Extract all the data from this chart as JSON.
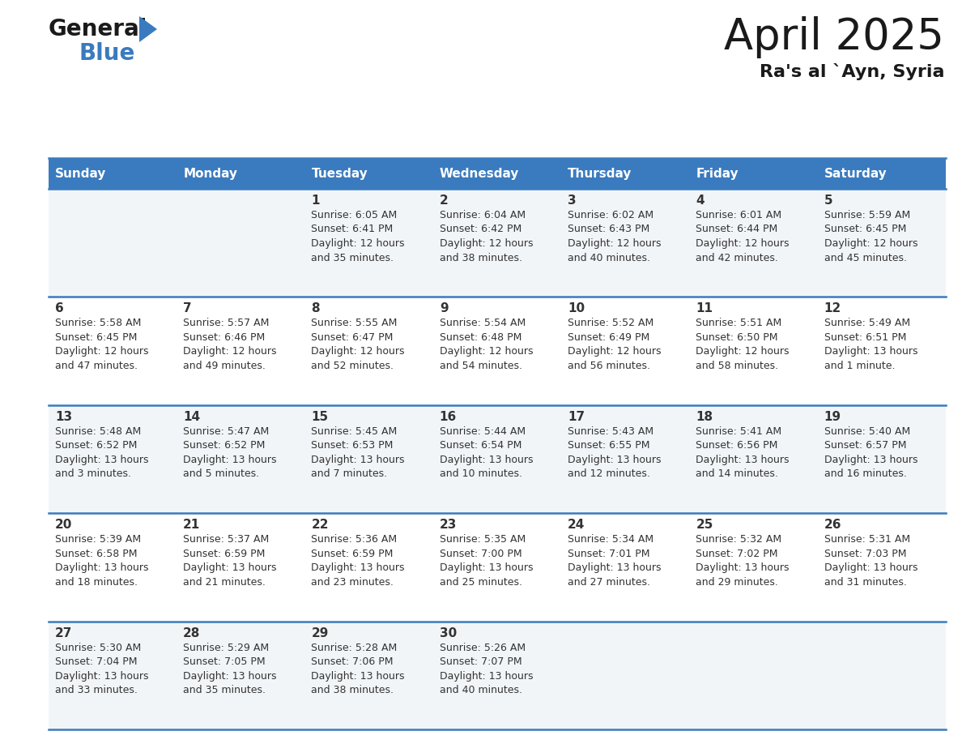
{
  "title": "April 2025",
  "subtitle": "Ra's al `Ayn, Syria",
  "header_color": "#3a7bbf",
  "header_text_color": "#ffffff",
  "cell_bg_even": "#f2f5f8",
  "cell_bg_odd": "#ffffff",
  "border_color": "#3a7bbf",
  "text_color": "#333333",
  "days_of_week": [
    "Sunday",
    "Monday",
    "Tuesday",
    "Wednesday",
    "Thursday",
    "Friday",
    "Saturday"
  ],
  "weeks": [
    [
      {
        "day": "",
        "lines": []
      },
      {
        "day": "",
        "lines": []
      },
      {
        "day": "1",
        "lines": [
          "Sunrise: 6:05 AM",
          "Sunset: 6:41 PM",
          "Daylight: 12 hours",
          "and 35 minutes."
        ]
      },
      {
        "day": "2",
        "lines": [
          "Sunrise: 6:04 AM",
          "Sunset: 6:42 PM",
          "Daylight: 12 hours",
          "and 38 minutes."
        ]
      },
      {
        "day": "3",
        "lines": [
          "Sunrise: 6:02 AM",
          "Sunset: 6:43 PM",
          "Daylight: 12 hours",
          "and 40 minutes."
        ]
      },
      {
        "day": "4",
        "lines": [
          "Sunrise: 6:01 AM",
          "Sunset: 6:44 PM",
          "Daylight: 12 hours",
          "and 42 minutes."
        ]
      },
      {
        "day": "5",
        "lines": [
          "Sunrise: 5:59 AM",
          "Sunset: 6:45 PM",
          "Daylight: 12 hours",
          "and 45 minutes."
        ]
      }
    ],
    [
      {
        "day": "6",
        "lines": [
          "Sunrise: 5:58 AM",
          "Sunset: 6:45 PM",
          "Daylight: 12 hours",
          "and 47 minutes."
        ]
      },
      {
        "day": "7",
        "lines": [
          "Sunrise: 5:57 AM",
          "Sunset: 6:46 PM",
          "Daylight: 12 hours",
          "and 49 minutes."
        ]
      },
      {
        "day": "8",
        "lines": [
          "Sunrise: 5:55 AM",
          "Sunset: 6:47 PM",
          "Daylight: 12 hours",
          "and 52 minutes."
        ]
      },
      {
        "day": "9",
        "lines": [
          "Sunrise: 5:54 AM",
          "Sunset: 6:48 PM",
          "Daylight: 12 hours",
          "and 54 minutes."
        ]
      },
      {
        "day": "10",
        "lines": [
          "Sunrise: 5:52 AM",
          "Sunset: 6:49 PM",
          "Daylight: 12 hours",
          "and 56 minutes."
        ]
      },
      {
        "day": "11",
        "lines": [
          "Sunrise: 5:51 AM",
          "Sunset: 6:50 PM",
          "Daylight: 12 hours",
          "and 58 minutes."
        ]
      },
      {
        "day": "12",
        "lines": [
          "Sunrise: 5:49 AM",
          "Sunset: 6:51 PM",
          "Daylight: 13 hours",
          "and 1 minute."
        ]
      }
    ],
    [
      {
        "day": "13",
        "lines": [
          "Sunrise: 5:48 AM",
          "Sunset: 6:52 PM",
          "Daylight: 13 hours",
          "and 3 minutes."
        ]
      },
      {
        "day": "14",
        "lines": [
          "Sunrise: 5:47 AM",
          "Sunset: 6:52 PM",
          "Daylight: 13 hours",
          "and 5 minutes."
        ]
      },
      {
        "day": "15",
        "lines": [
          "Sunrise: 5:45 AM",
          "Sunset: 6:53 PM",
          "Daylight: 13 hours",
          "and 7 minutes."
        ]
      },
      {
        "day": "16",
        "lines": [
          "Sunrise: 5:44 AM",
          "Sunset: 6:54 PM",
          "Daylight: 13 hours",
          "and 10 minutes."
        ]
      },
      {
        "day": "17",
        "lines": [
          "Sunrise: 5:43 AM",
          "Sunset: 6:55 PM",
          "Daylight: 13 hours",
          "and 12 minutes."
        ]
      },
      {
        "day": "18",
        "lines": [
          "Sunrise: 5:41 AM",
          "Sunset: 6:56 PM",
          "Daylight: 13 hours",
          "and 14 minutes."
        ]
      },
      {
        "day": "19",
        "lines": [
          "Sunrise: 5:40 AM",
          "Sunset: 6:57 PM",
          "Daylight: 13 hours",
          "and 16 minutes."
        ]
      }
    ],
    [
      {
        "day": "20",
        "lines": [
          "Sunrise: 5:39 AM",
          "Sunset: 6:58 PM",
          "Daylight: 13 hours",
          "and 18 minutes."
        ]
      },
      {
        "day": "21",
        "lines": [
          "Sunrise: 5:37 AM",
          "Sunset: 6:59 PM",
          "Daylight: 13 hours",
          "and 21 minutes."
        ]
      },
      {
        "day": "22",
        "lines": [
          "Sunrise: 5:36 AM",
          "Sunset: 6:59 PM",
          "Daylight: 13 hours",
          "and 23 minutes."
        ]
      },
      {
        "day": "23",
        "lines": [
          "Sunrise: 5:35 AM",
          "Sunset: 7:00 PM",
          "Daylight: 13 hours",
          "and 25 minutes."
        ]
      },
      {
        "day": "24",
        "lines": [
          "Sunrise: 5:34 AM",
          "Sunset: 7:01 PM",
          "Daylight: 13 hours",
          "and 27 minutes."
        ]
      },
      {
        "day": "25",
        "lines": [
          "Sunrise: 5:32 AM",
          "Sunset: 7:02 PM",
          "Daylight: 13 hours",
          "and 29 minutes."
        ]
      },
      {
        "day": "26",
        "lines": [
          "Sunrise: 5:31 AM",
          "Sunset: 7:03 PM",
          "Daylight: 13 hours",
          "and 31 minutes."
        ]
      }
    ],
    [
      {
        "day": "27",
        "lines": [
          "Sunrise: 5:30 AM",
          "Sunset: 7:04 PM",
          "Daylight: 13 hours",
          "and 33 minutes."
        ]
      },
      {
        "day": "28",
        "lines": [
          "Sunrise: 5:29 AM",
          "Sunset: 7:05 PM",
          "Daylight: 13 hours",
          "and 35 minutes."
        ]
      },
      {
        "day": "29",
        "lines": [
          "Sunrise: 5:28 AM",
          "Sunset: 7:06 PM",
          "Daylight: 13 hours",
          "and 38 minutes."
        ]
      },
      {
        "day": "30",
        "lines": [
          "Sunrise: 5:26 AM",
          "Sunset: 7:07 PM",
          "Daylight: 13 hours",
          "and 40 minutes."
        ]
      },
      {
        "day": "",
        "lines": []
      },
      {
        "day": "",
        "lines": []
      },
      {
        "day": "",
        "lines": []
      }
    ]
  ],
  "logo_general_color": "#1a1a1a",
  "logo_blue_color": "#3a7bbf",
  "logo_triangle_color": "#3a7bbf"
}
